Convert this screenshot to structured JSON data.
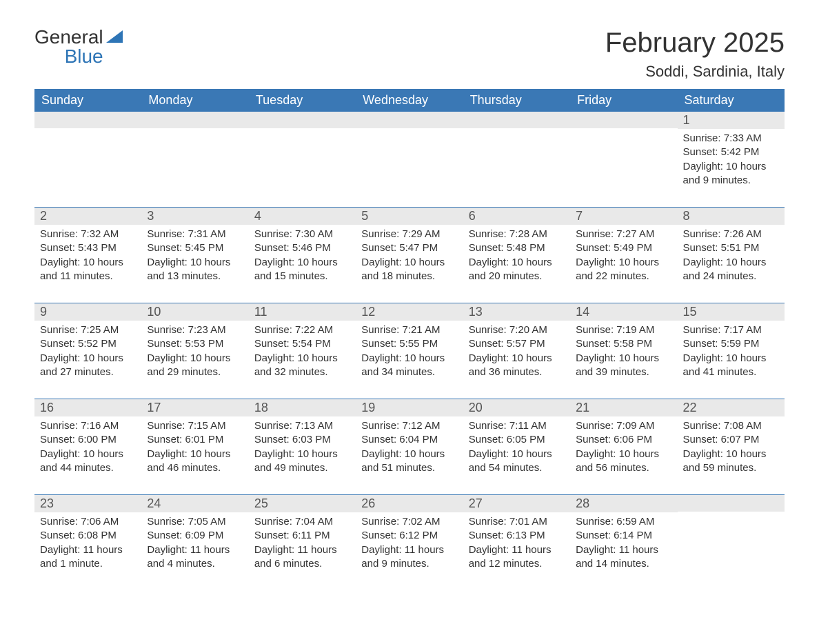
{
  "brand": {
    "part1": "General",
    "part2": "Blue"
  },
  "title": "February 2025",
  "location": "Soddi, Sardinia, Italy",
  "colors": {
    "header_bg": "#3a78b5",
    "header_text": "#ffffff",
    "band_bg": "#e9e9e9",
    "text": "#333333",
    "accent": "#2e75b6",
    "page_bg": "#ffffff"
  },
  "typography": {
    "month_title_fontsize": 40,
    "location_fontsize": 22,
    "weekday_fontsize": 18,
    "daynum_fontsize": 18,
    "body_fontsize": 15
  },
  "weekdays": [
    "Sunday",
    "Monday",
    "Tuesday",
    "Wednesday",
    "Thursday",
    "Friday",
    "Saturday"
  ],
  "weeks": [
    [
      {
        "empty": true
      },
      {
        "empty": true
      },
      {
        "empty": true
      },
      {
        "empty": true
      },
      {
        "empty": true
      },
      {
        "empty": true
      },
      {
        "n": "1",
        "sunrise": "Sunrise: 7:33 AM",
        "sunset": "Sunset: 5:42 PM",
        "daylight": "Daylight: 10 hours and 9 minutes."
      }
    ],
    [
      {
        "n": "2",
        "sunrise": "Sunrise: 7:32 AM",
        "sunset": "Sunset: 5:43 PM",
        "daylight": "Daylight: 10 hours and 11 minutes."
      },
      {
        "n": "3",
        "sunrise": "Sunrise: 7:31 AM",
        "sunset": "Sunset: 5:45 PM",
        "daylight": "Daylight: 10 hours and 13 minutes."
      },
      {
        "n": "4",
        "sunrise": "Sunrise: 7:30 AM",
        "sunset": "Sunset: 5:46 PM",
        "daylight": "Daylight: 10 hours and 15 minutes."
      },
      {
        "n": "5",
        "sunrise": "Sunrise: 7:29 AM",
        "sunset": "Sunset: 5:47 PM",
        "daylight": "Daylight: 10 hours and 18 minutes."
      },
      {
        "n": "6",
        "sunrise": "Sunrise: 7:28 AM",
        "sunset": "Sunset: 5:48 PM",
        "daylight": "Daylight: 10 hours and 20 minutes."
      },
      {
        "n": "7",
        "sunrise": "Sunrise: 7:27 AM",
        "sunset": "Sunset: 5:49 PM",
        "daylight": "Daylight: 10 hours and 22 minutes."
      },
      {
        "n": "8",
        "sunrise": "Sunrise: 7:26 AM",
        "sunset": "Sunset: 5:51 PM",
        "daylight": "Daylight: 10 hours and 24 minutes."
      }
    ],
    [
      {
        "n": "9",
        "sunrise": "Sunrise: 7:25 AM",
        "sunset": "Sunset: 5:52 PM",
        "daylight": "Daylight: 10 hours and 27 minutes."
      },
      {
        "n": "10",
        "sunrise": "Sunrise: 7:23 AM",
        "sunset": "Sunset: 5:53 PM",
        "daylight": "Daylight: 10 hours and 29 minutes."
      },
      {
        "n": "11",
        "sunrise": "Sunrise: 7:22 AM",
        "sunset": "Sunset: 5:54 PM",
        "daylight": "Daylight: 10 hours and 32 minutes."
      },
      {
        "n": "12",
        "sunrise": "Sunrise: 7:21 AM",
        "sunset": "Sunset: 5:55 PM",
        "daylight": "Daylight: 10 hours and 34 minutes."
      },
      {
        "n": "13",
        "sunrise": "Sunrise: 7:20 AM",
        "sunset": "Sunset: 5:57 PM",
        "daylight": "Daylight: 10 hours and 36 minutes."
      },
      {
        "n": "14",
        "sunrise": "Sunrise: 7:19 AM",
        "sunset": "Sunset: 5:58 PM",
        "daylight": "Daylight: 10 hours and 39 minutes."
      },
      {
        "n": "15",
        "sunrise": "Sunrise: 7:17 AM",
        "sunset": "Sunset: 5:59 PM",
        "daylight": "Daylight: 10 hours and 41 minutes."
      }
    ],
    [
      {
        "n": "16",
        "sunrise": "Sunrise: 7:16 AM",
        "sunset": "Sunset: 6:00 PM",
        "daylight": "Daylight: 10 hours and 44 minutes."
      },
      {
        "n": "17",
        "sunrise": "Sunrise: 7:15 AM",
        "sunset": "Sunset: 6:01 PM",
        "daylight": "Daylight: 10 hours and 46 minutes."
      },
      {
        "n": "18",
        "sunrise": "Sunrise: 7:13 AM",
        "sunset": "Sunset: 6:03 PM",
        "daylight": "Daylight: 10 hours and 49 minutes."
      },
      {
        "n": "19",
        "sunrise": "Sunrise: 7:12 AM",
        "sunset": "Sunset: 6:04 PM",
        "daylight": "Daylight: 10 hours and 51 minutes."
      },
      {
        "n": "20",
        "sunrise": "Sunrise: 7:11 AM",
        "sunset": "Sunset: 6:05 PM",
        "daylight": "Daylight: 10 hours and 54 minutes."
      },
      {
        "n": "21",
        "sunrise": "Sunrise: 7:09 AM",
        "sunset": "Sunset: 6:06 PM",
        "daylight": "Daylight: 10 hours and 56 minutes."
      },
      {
        "n": "22",
        "sunrise": "Sunrise: 7:08 AM",
        "sunset": "Sunset: 6:07 PM",
        "daylight": "Daylight: 10 hours and 59 minutes."
      }
    ],
    [
      {
        "n": "23",
        "sunrise": "Sunrise: 7:06 AM",
        "sunset": "Sunset: 6:08 PM",
        "daylight": "Daylight: 11 hours and 1 minute."
      },
      {
        "n": "24",
        "sunrise": "Sunrise: 7:05 AM",
        "sunset": "Sunset: 6:09 PM",
        "daylight": "Daylight: 11 hours and 4 minutes."
      },
      {
        "n": "25",
        "sunrise": "Sunrise: 7:04 AM",
        "sunset": "Sunset: 6:11 PM",
        "daylight": "Daylight: 11 hours and 6 minutes."
      },
      {
        "n": "26",
        "sunrise": "Sunrise: 7:02 AM",
        "sunset": "Sunset: 6:12 PM",
        "daylight": "Daylight: 11 hours and 9 minutes."
      },
      {
        "n": "27",
        "sunrise": "Sunrise: 7:01 AM",
        "sunset": "Sunset: 6:13 PM",
        "daylight": "Daylight: 11 hours and 12 minutes."
      },
      {
        "n": "28",
        "sunrise": "Sunrise: 6:59 AM",
        "sunset": "Sunset: 6:14 PM",
        "daylight": "Daylight: 11 hours and 14 minutes."
      },
      {
        "empty": true
      }
    ]
  ]
}
